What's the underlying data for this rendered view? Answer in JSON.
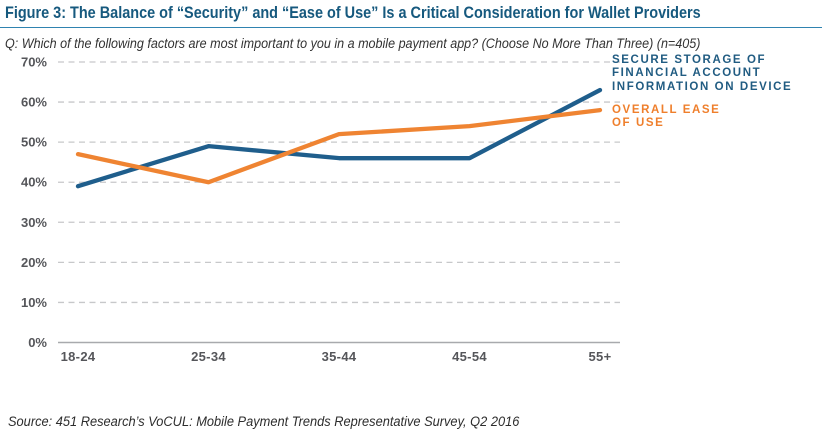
{
  "figure": {
    "title": "Figure 3: The Balance of “Security” and “Ease of Use” Is a Critical Consideration for Wallet Providers",
    "question": "Q:  Which of the following factors are most important to you in a mobile payment app? (Choose No More Than Three) (n=405)",
    "source": "Source: 451 Research’s VoCUL: Mobile Payment Trends Representative Survey, Q2 2016"
  },
  "colors": {
    "title_blue": "#16597E",
    "rule_blue": "#2F83B0",
    "secure_line_blue": "#1F5E8C",
    "ease_line_orange": "#EF8432",
    "legend_blue": "#215C82",
    "legend_orange": "#EF7F2C",
    "tick_gray": "#55565A",
    "grid_gray": "#C7C8CA",
    "axis_gray": "#A8AAAD"
  },
  "chart_data": {
    "type": "line",
    "title": "The Balance of “Security” and “Ease of Use” Is a Critical Consideration for Wallet Providers",
    "xlabel": "",
    "ylabel": "",
    "ylim": [
      0,
      70
    ],
    "ytick_step": 10,
    "ytick_format": "percent",
    "grid": "horizontal-dashed",
    "categories": [
      "18-24",
      "25-34",
      "35-44",
      "45-54",
      "55+"
    ],
    "series": [
      {
        "id": "secure-storage",
        "name": "Secure storage of financial account information on device",
        "color": "#1F5E8C",
        "values": [
          39,
          49,
          46,
          46,
          63
        ]
      },
      {
        "id": "overall-ease",
        "name": "Overall ease of use",
        "color": "#EF8432",
        "values": [
          47,
          40,
          52,
          54,
          58
        ]
      }
    ],
    "legend": [
      {
        "id": "secure-storage",
        "color": "#215C82",
        "lines": [
          "SECURE STORAGE OF",
          "FINANCIAL ACCOUNT",
          "INFORMATION ON DEVICE"
        ]
      },
      {
        "id": "overall-ease",
        "color": "#EF7F2C",
        "lines": [
          "OVERALL EASE",
          "OF USE"
        ]
      }
    ],
    "legend_position": "right-of-line-ends"
  }
}
